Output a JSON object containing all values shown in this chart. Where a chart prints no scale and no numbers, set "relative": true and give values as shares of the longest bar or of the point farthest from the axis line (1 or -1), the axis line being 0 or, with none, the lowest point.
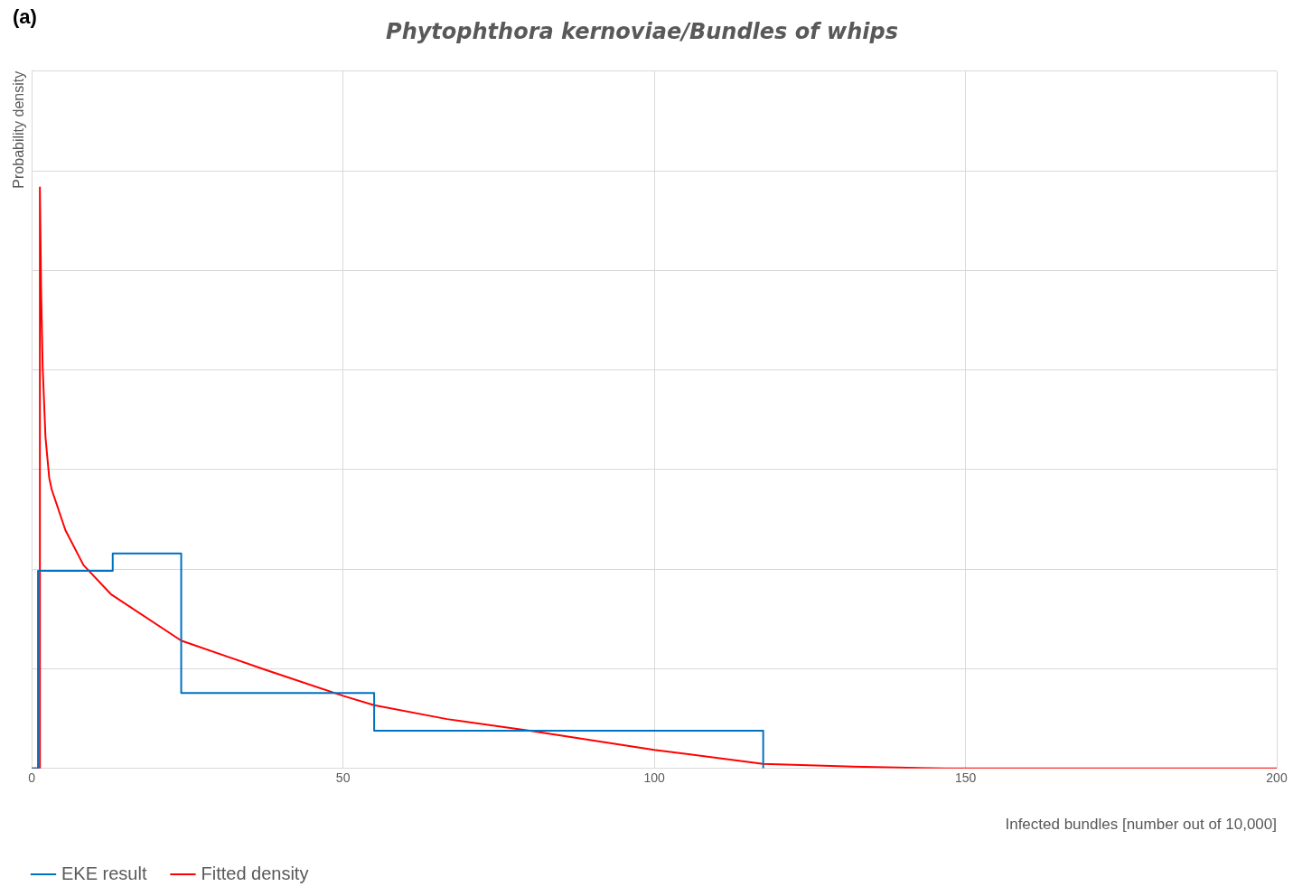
{
  "chart_data": {
    "type": "line",
    "title": "Phytophthora kernoviae/Bundles of whips",
    "xlabel": "Infected bundles [number out of 10,000]",
    "ylabel": "Probability density",
    "annotations": [
      "(a)"
    ],
    "relative": true,
    "xlim": [
      0,
      200
    ],
    "xticks": [
      0,
      50,
      100,
      150,
      200
    ],
    "grid": true,
    "legend": "bottom left",
    "marker": "none",
    "series": [
      {
        "name": "EKE result",
        "type": "step",
        "color": "#0070c0",
        "x": [
          0,
          1,
          13,
          24,
          55,
          117.5
        ],
        "values": [
          0,
          0.34,
          0.37,
          0.13,
          0.065,
          0
        ]
      },
      {
        "name": "Fitted density",
        "type": "line",
        "color": "#ff0000",
        "x": [
          0,
          1.3,
          1.3,
          1.5,
          1.75,
          2.2,
          2.8,
          3.2,
          5.4,
          8.3,
          12.7,
          24,
          37.5,
          50,
          55,
          66.7,
          80,
          100,
          117.5,
          132,
          147,
          200
        ],
        "values": [
          0,
          0,
          1,
          0.82,
          0.69,
          0.57,
          0.5,
          0.48,
          0.41,
          0.35,
          0.3,
          0.22,
          0.17,
          0.125,
          0.109,
          0.085,
          0.065,
          0.032,
          0.008,
          0.003,
          0,
          0
        ]
      }
    ]
  }
}
